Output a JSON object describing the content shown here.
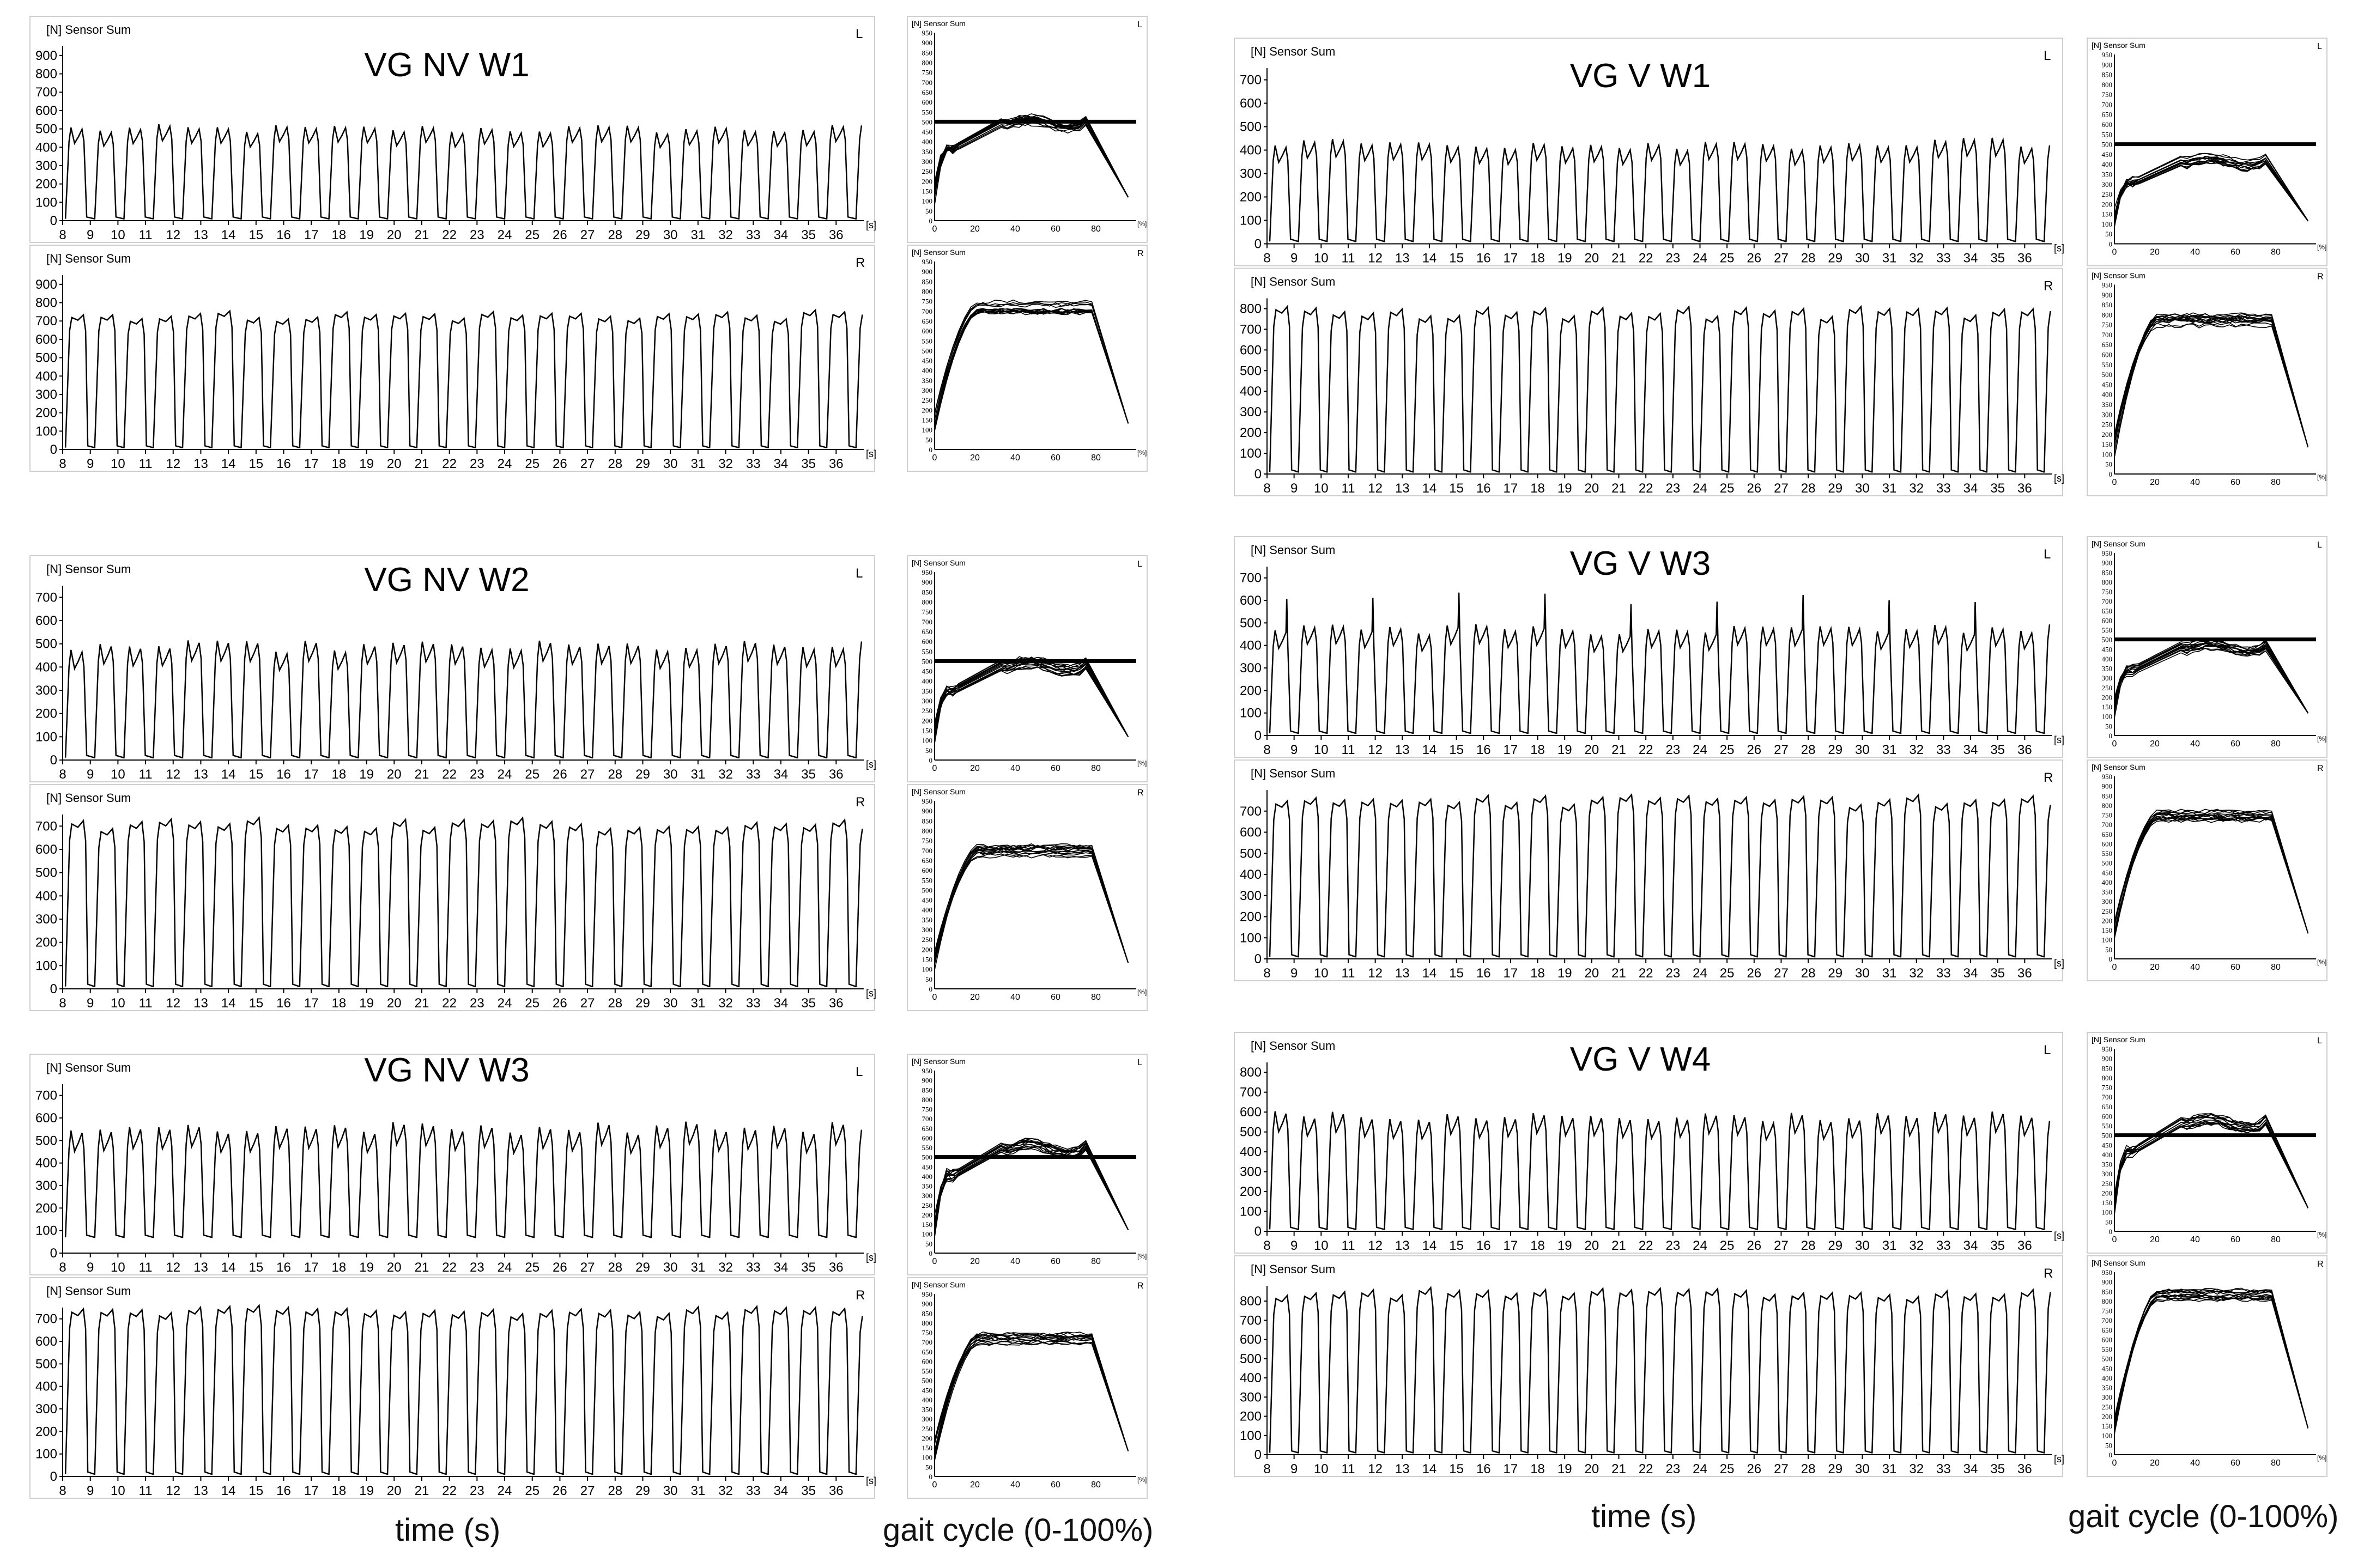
{
  "labels": {
    "sensor_sum": "[N] Sensor Sum",
    "time_unit": "[s]",
    "percent_unit": "[%]",
    "time_axis_title": "time (s)",
    "gait_axis_title": "gait cycle (0-100%)"
  },
  "chart_data": [
    {
      "type": "line",
      "title": "VG NV W1",
      "threshold": 500,
      "rows": [
        {
          "side": "L",
          "time_ylim": [
            0,
            950
          ],
          "time_yticks": [
            0,
            100,
            200,
            300,
            400,
            500,
            600,
            700,
            800,
            900
          ],
          "peak": 500,
          "cycle_shape": "double"
        },
        {
          "side": "R",
          "time_ylim": [
            0,
            950
          ],
          "time_yticks": [
            0,
            100,
            200,
            300,
            400,
            500,
            600,
            700,
            800,
            900
          ],
          "peak": 720,
          "cycle_shape": "plateau"
        }
      ],
      "xlim": [
        8,
        37
      ],
      "xticks": [
        8,
        9,
        10,
        11,
        12,
        13,
        14,
        15,
        16,
        17,
        18,
        19,
        20,
        21,
        22,
        23,
        24,
        25,
        26,
        27,
        28,
        29,
        30,
        31,
        32,
        33,
        34,
        35,
        36
      ],
      "gait_ylim": [
        0,
        950
      ],
      "gait_yticks": [
        0,
        50,
        100,
        150,
        200,
        250,
        300,
        350,
        400,
        450,
        500,
        550,
        600,
        650,
        700,
        750,
        800,
        850,
        900,
        950
      ],
      "gait_xticks": [
        0,
        20,
        40,
        60,
        80
      ]
    },
    {
      "type": "line",
      "title": "VG NV W2",
      "threshold": 500,
      "rows": [
        {
          "side": "L",
          "time_ylim": [
            0,
            750
          ],
          "time_yticks": [
            0,
            100,
            200,
            300,
            400,
            500,
            600,
            700
          ],
          "peak": 490,
          "cycle_shape": "double"
        },
        {
          "side": "R",
          "time_ylim": [
            0,
            750
          ],
          "time_yticks": [
            0,
            100,
            200,
            300,
            400,
            500,
            600,
            700
          ],
          "peak": 700,
          "cycle_shape": "plateau"
        }
      ],
      "xlim": [
        8,
        37
      ],
      "xticks": [
        8,
        9,
        10,
        11,
        12,
        13,
        14,
        15,
        16,
        17,
        18,
        19,
        20,
        21,
        22,
        23,
        24,
        25,
        26,
        27,
        28,
        29,
        30,
        31,
        32,
        33,
        34,
        35,
        36
      ],
      "gait_ylim": [
        0,
        950
      ],
      "gait_yticks": [
        0,
        50,
        100,
        150,
        200,
        250,
        300,
        350,
        400,
        450,
        500,
        550,
        600,
        650,
        700,
        750,
        800,
        850,
        900,
        950
      ],
      "gait_xticks": [
        0,
        20,
        40,
        60,
        80
      ]
    },
    {
      "type": "line",
      "title": "VG NV W3",
      "threshold": 500,
      "rows": [
        {
          "side": "L",
          "time_ylim": [
            0,
            750
          ],
          "time_yticks": [
            0,
            100,
            200,
            300,
            400,
            500,
            600,
            700
          ],
          "peak": 560,
          "cycle_shape": "double",
          "baseline": 70
        },
        {
          "side": "R",
          "time_ylim": [
            0,
            750
          ],
          "time_yticks": [
            0,
            100,
            200,
            300,
            400,
            500,
            600,
            700
          ],
          "peak": 720,
          "cycle_shape": "plateau"
        }
      ],
      "xlim": [
        8,
        37
      ],
      "xticks": [
        8,
        9,
        10,
        11,
        12,
        13,
        14,
        15,
        16,
        17,
        18,
        19,
        20,
        21,
        22,
        23,
        24,
        25,
        26,
        27,
        28,
        29,
        30,
        31,
        32,
        33,
        34,
        35,
        36
      ],
      "gait_ylim": [
        0,
        950
      ],
      "gait_yticks": [
        0,
        50,
        100,
        150,
        200,
        250,
        300,
        350,
        400,
        450,
        500,
        550,
        600,
        650,
        700,
        750,
        800,
        850,
        900,
        950
      ],
      "gait_xticks": [
        0,
        20,
        40,
        60,
        80
      ]
    },
    {
      "type": "line",
      "title": "VG V W1",
      "threshold": 500,
      "rows": [
        {
          "side": "L",
          "time_ylim": [
            0,
            750
          ],
          "time_yticks": [
            0,
            100,
            200,
            300,
            400,
            500,
            600,
            700
          ],
          "peak": 430,
          "cycle_shape": "double"
        },
        {
          "side": "R",
          "time_ylim": [
            0,
            850
          ],
          "time_yticks": [
            0,
            100,
            200,
            300,
            400,
            500,
            600,
            700,
            800
          ],
          "peak": 770,
          "cycle_shape": "plateau"
        }
      ],
      "xlim": [
        8,
        37
      ],
      "xticks": [
        8,
        9,
        10,
        11,
        12,
        13,
        14,
        15,
        16,
        17,
        18,
        19,
        20,
        21,
        22,
        23,
        24,
        25,
        26,
        27,
        28,
        29,
        30,
        31,
        32,
        33,
        34,
        35,
        36
      ],
      "gait_ylim": [
        0,
        950
      ],
      "gait_yticks": [
        0,
        50,
        100,
        150,
        200,
        250,
        300,
        350,
        400,
        450,
        500,
        550,
        600,
        650,
        700,
        750,
        800,
        850,
        900,
        950
      ],
      "gait_xticks": [
        0,
        20,
        40,
        60,
        80
      ]
    },
    {
      "type": "line",
      "title": "VG V W3",
      "threshold": 500,
      "rows": [
        {
          "side": "L",
          "time_ylim": [
            0,
            750
          ],
          "time_yticks": [
            0,
            100,
            200,
            300,
            400,
            500,
            600,
            700
          ],
          "peak": 470,
          "cycle_shape": "double",
          "spikes": true
        },
        {
          "side": "R",
          "time_ylim": [
            0,
            800
          ],
          "time_yticks": [
            0,
            100,
            200,
            300,
            400,
            500,
            600,
            700
          ],
          "peak": 740,
          "cycle_shape": "plateau"
        }
      ],
      "xlim": [
        8,
        37
      ],
      "xticks": [
        8,
        9,
        10,
        11,
        12,
        13,
        14,
        15,
        16,
        17,
        18,
        19,
        20,
        21,
        22,
        23,
        24,
        25,
        26,
        27,
        28,
        29,
        30,
        31,
        32,
        33,
        34,
        35,
        36
      ],
      "gait_ylim": [
        0,
        950
      ],
      "gait_yticks": [
        0,
        50,
        100,
        150,
        200,
        250,
        300,
        350,
        400,
        450,
        500,
        550,
        600,
        650,
        700,
        750,
        800,
        850,
        900,
        950
      ],
      "gait_xticks": [
        0,
        20,
        40,
        60,
        80
      ]
    },
    {
      "type": "line",
      "title": "VG V W4",
      "threshold": 500,
      "rows": [
        {
          "side": "L",
          "time_ylim": [
            0,
            850
          ],
          "time_yticks": [
            0,
            100,
            200,
            300,
            400,
            500,
            600,
            700,
            800
          ],
          "peak": 580,
          "cycle_shape": "double"
        },
        {
          "side": "R",
          "time_ylim": [
            0,
            880
          ],
          "time_yticks": [
            0,
            100,
            200,
            300,
            400,
            500,
            600,
            700,
            800
          ],
          "peak": 830,
          "cycle_shape": "plateau"
        }
      ],
      "xlim": [
        8,
        37
      ],
      "xticks": [
        8,
        9,
        10,
        11,
        12,
        13,
        14,
        15,
        16,
        17,
        18,
        19,
        20,
        21,
        22,
        23,
        24,
        25,
        26,
        27,
        28,
        29,
        30,
        31,
        32,
        33,
        34,
        35,
        36
      ],
      "gait_ylim": [
        0,
        950
      ],
      "gait_yticks": [
        0,
        50,
        100,
        150,
        200,
        250,
        300,
        350,
        400,
        450,
        500,
        550,
        600,
        650,
        700,
        750,
        800,
        850,
        900,
        950
      ],
      "gait_xticks": [
        0,
        20,
        40,
        60,
        80
      ]
    }
  ]
}
